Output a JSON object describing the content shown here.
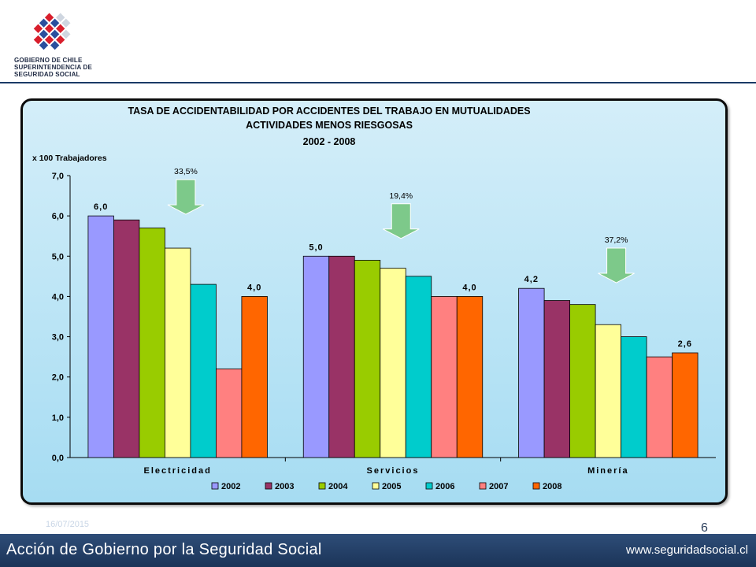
{
  "header": {
    "org_line1": "GOBIERNO DE CHILE",
    "org_line2": "SUPERINTENDENCIA DE",
    "org_line3": "SEGURIDAD SOCIAL"
  },
  "footer": {
    "date": "16/07/2015",
    "page_number": "6",
    "title": "Acción de Gobierno por la Seguridad Social",
    "url": "www.seguridadsocial.cl"
  },
  "colors": {
    "2002": "#9999ff",
    "2003": "#993366",
    "2004": "#99cc00",
    "2005": "#ffff99",
    "2006": "#00cccc",
    "2007": "#ff8080",
    "2008": "#ff6600",
    "arrow": "#7dc98a"
  },
  "chart_data": {
    "type": "bar",
    "title_lines": [
      "TASA DE ACCIDENTABILIDAD POR ACCIDENTES DEL TRABAJO EN MUTUALIDADES",
      "ACTIVIDADES MENOS RIESGOSAS",
      "2002 - 2008"
    ],
    "ylabel": "x 100 Trabajadores",
    "ylim": [
      0,
      7
    ],
    "yticks": [
      "0,0",
      "1,0",
      "2,0",
      "3,0",
      "4,0",
      "5,0",
      "6,0",
      "7,0"
    ],
    "categories": [
      "Electricidad",
      "Servicios",
      "Minería"
    ],
    "series": [
      {
        "name": "2002",
        "values": [
          6.0,
          5.0,
          4.2
        ]
      },
      {
        "name": "2003",
        "values": [
          5.9,
          5.0,
          3.9
        ]
      },
      {
        "name": "2004",
        "values": [
          5.7,
          4.9,
          3.8
        ]
      },
      {
        "name": "2005",
        "values": [
          5.2,
          4.7,
          3.3
        ]
      },
      {
        "name": "2006",
        "values": [
          4.3,
          4.5,
          3.0
        ]
      },
      {
        "name": "2007",
        "values": [
          2.2,
          4.0,
          2.5
        ]
      },
      {
        "name": "2008",
        "values": [
          4.0,
          4.0,
          2.6
        ]
      }
    ],
    "data_labels": [
      {
        "category": 0,
        "series": 0,
        "text": "6,0"
      },
      {
        "category": 0,
        "series": 6,
        "text": "4,0"
      },
      {
        "category": 1,
        "series": 0,
        "text": "5,0"
      },
      {
        "category": 1,
        "series": 6,
        "text": "4,0"
      },
      {
        "category": 2,
        "series": 0,
        "text": "4,2"
      },
      {
        "category": 2,
        "series": 6,
        "text": "2,6"
      }
    ],
    "annotations": [
      {
        "category": 0,
        "text": "33,5%",
        "value_top": 6.9
      },
      {
        "category": 1,
        "text": "19,4%",
        "value_top": 6.3
      },
      {
        "category": 2,
        "text": "37,2%",
        "value_top": 5.2
      }
    ],
    "legend_position": "bottom",
    "grid": false
  }
}
